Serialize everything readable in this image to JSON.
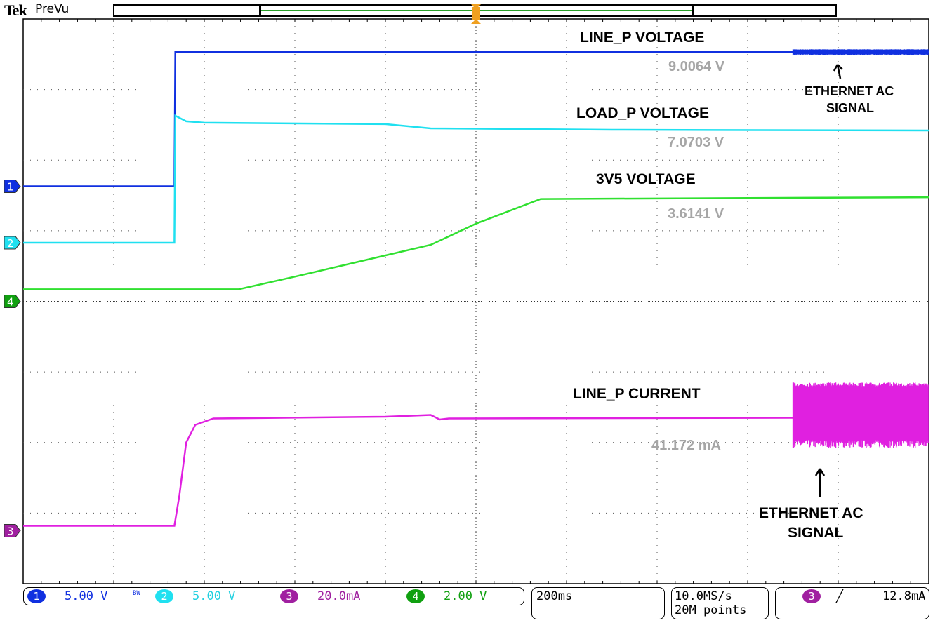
{
  "header": {
    "brand": "Tek",
    "mode": "PreVu",
    "trigger_marker": "T"
  },
  "colors": {
    "ch1": "#1030e0",
    "ch2": "#20e0f0",
    "ch3": "#e020e0",
    "ch4": "#30e030",
    "ch3_badge": "#a020a0",
    "ch4_badge": "#10a010",
    "grid": "#000000",
    "measurement": "#a6a6a6"
  },
  "chart_data": {
    "type": "line",
    "x_units": "ms",
    "x_per_div": 200,
    "x_divs": 10,
    "xlim": [
      0,
      2000
    ],
    "y_divs": 8,
    "grid": true,
    "series": [
      {
        "channel": "1",
        "scale": "5.00 V",
        "units": "V",
        "ground_div": 1.63,
        "points": [
          [
            0,
            0
          ],
          [
            334,
            0
          ],
          [
            336,
            9.5
          ],
          [
            2000,
            9.5
          ]
        ],
        "ac_band": {
          "from": 1700,
          "to": 2000,
          "low": 9.3,
          "high": 9.7
        }
      },
      {
        "channel": "2",
        "scale": "5.00 V",
        "units": "V",
        "ground_div": 0.83,
        "points": [
          [
            0,
            0
          ],
          [
            334,
            0
          ],
          [
            336,
            9.0
          ],
          [
            360,
            8.6
          ],
          [
            400,
            8.5
          ],
          [
            800,
            8.4
          ],
          [
            900,
            8.1
          ],
          [
            1300,
            8.0
          ],
          [
            2000,
            7.95
          ]
        ]
      },
      {
        "channel": "4",
        "scale": "2.00 V",
        "units": "V",
        "ground_div": 0.0,
        "points": [
          [
            0,
            0.34
          ],
          [
            476,
            0.34
          ],
          [
            600,
            0.7
          ],
          [
            900,
            1.6
          ],
          [
            1000,
            2.2
          ],
          [
            1143,
            2.9
          ],
          [
            2000,
            2.95
          ]
        ]
      },
      {
        "channel": "3",
        "scale": "20.0mA",
        "units": "mA",
        "ground_div": -3.25,
        "points": [
          [
            0,
            1.4
          ],
          [
            334,
            1.4
          ],
          [
            345,
            10
          ],
          [
            360,
            25
          ],
          [
            380,
            30
          ],
          [
            420,
            31.8
          ],
          [
            800,
            32.3
          ],
          [
            900,
            32.8
          ],
          [
            920,
            31.5
          ],
          [
            940,
            31.8
          ],
          [
            1700,
            32.0
          ]
        ],
        "ac_band": {
          "from": 1700,
          "to": 2000,
          "low": 23.5,
          "high": 42
        }
      }
    ],
    "annotations": [
      {
        "id": "line_p_voltage",
        "label": "LINE_P VOLTAGE",
        "value": "9.0064 V"
      },
      {
        "id": "load_p_voltage",
        "label": "LOAD_P VOLTAGE",
        "value": "7.0703 V"
      },
      {
        "id": "v3v5",
        "label": "3V5 VOLTAGE",
        "value": "3.6141 V"
      },
      {
        "id": "line_p_current",
        "label": "LINE_P CURRENT",
        "value": "41.172 mA"
      },
      {
        "id": "eth1",
        "label1": "ETHERNET AC",
        "label2": "SIGNAL"
      },
      {
        "id": "eth2",
        "label1": "ETHERNET AC",
        "label2": "SIGNAL"
      }
    ]
  },
  "status": {
    "channels": [
      {
        "num": "1",
        "scale": "5.00 V"
      },
      {
        "num": "2",
        "scale": "5.00 V",
        "bw": "BW"
      },
      {
        "num": "3",
        "scale": "20.0mA"
      },
      {
        "num": "4",
        "scale": "2.00 V"
      }
    ],
    "timebase": "200ms",
    "sample_rate": "10.0MS/s",
    "record_length": "20M points",
    "trigger": {
      "source": "3",
      "slope": "rising",
      "level": "12.8mA"
    }
  }
}
